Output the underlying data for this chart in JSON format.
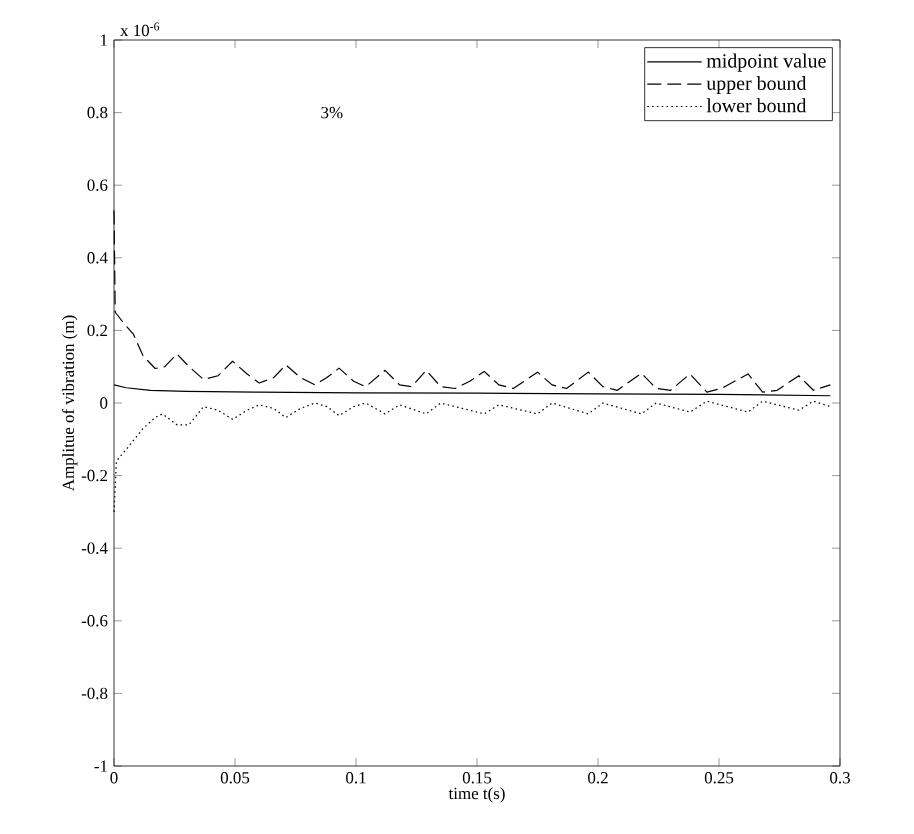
{
  "chart_data": {
    "type": "line",
    "xlabel": "time t(s)",
    "ylabel": "Amplitue of vibration (m)",
    "annotations": [
      "3%",
      "x 10$^{-6}$"
    ],
    "xlim": [
      0,
      0.3
    ],
    "xticks": [
      0,
      0.05,
      0.1,
      0.15,
      0.2,
      0.25,
      0.3
    ],
    "ylim": [
      -1,
      1
    ],
    "yticks": [
      -1,
      -0.8,
      -0.6,
      -0.4,
      -0.2,
      0,
      0.2,
      0.4,
      0.6,
      0.8,
      1
    ],
    "legend": "top right",
    "grid": false,
    "series": [
      {
        "name": "midpoint value",
        "color": "#000000",
        "line_style": "solid",
        "x": [
          0,
          0.005,
          0.015,
          0.03,
          0.06,
          0.1,
          0.15,
          0.2,
          0.25,
          0.296
        ],
        "values": [
          0.05,
          0.042,
          0.035,
          0.032,
          0.03,
          0.028,
          0.027,
          0.025,
          0.024,
          0.02
        ]
      },
      {
        "name": "upper bound",
        "color": "#000000",
        "line_style": "dashed",
        "x": [
          0,
          0.0005,
          0.004,
          0.008,
          0.012,
          0.017,
          0.021,
          0.026,
          0.031,
          0.037,
          0.043,
          0.049,
          0.055,
          0.06,
          0.066,
          0.071,
          0.077,
          0.083,
          0.088,
          0.093,
          0.099,
          0.104,
          0.112,
          0.118,
          0.123,
          0.129,
          0.135,
          0.141,
          0.147,
          0.153,
          0.159,
          0.165,
          0.175,
          0.181,
          0.187,
          0.196,
          0.202,
          0.208,
          0.218,
          0.224,
          0.23,
          0.238,
          0.245,
          0.251,
          0.262,
          0.268,
          0.274,
          0.283,
          0.289,
          0.296
        ],
        "values": [
          0.53,
          0.25,
          0.22,
          0.19,
          0.13,
          0.095,
          0.1,
          0.135,
          0.1,
          0.065,
          0.075,
          0.115,
          0.08,
          0.055,
          0.07,
          0.105,
          0.07,
          0.05,
          0.07,
          0.096,
          0.06,
          0.045,
          0.09,
          0.05,
          0.045,
          0.09,
          0.045,
          0.04,
          0.06,
          0.087,
          0.05,
          0.04,
          0.085,
          0.05,
          0.04,
          0.085,
          0.045,
          0.035,
          0.082,
          0.04,
          0.035,
          0.08,
          0.03,
          0.04,
          0.08,
          0.03,
          0.035,
          0.075,
          0.035,
          0.05
        ]
      },
      {
        "name": "lower bound",
        "color": "#000000",
        "line_style": "dotted",
        "x": [
          0,
          0.001,
          0.006,
          0.012,
          0.017,
          0.02,
          0.026,
          0.031,
          0.037,
          0.043,
          0.049,
          0.055,
          0.06,
          0.066,
          0.071,
          0.077,
          0.083,
          0.088,
          0.093,
          0.099,
          0.104,
          0.112,
          0.118,
          0.129,
          0.135,
          0.147,
          0.153,
          0.159,
          0.175,
          0.181,
          0.196,
          0.202,
          0.218,
          0.224,
          0.238,
          0.245,
          0.262,
          0.268,
          0.283,
          0.289,
          0.296
        ],
        "values": [
          -0.3,
          -0.16,
          -0.12,
          -0.07,
          -0.04,
          -0.03,
          -0.06,
          -0.06,
          -0.01,
          -0.02,
          -0.045,
          -0.02,
          -0.005,
          -0.015,
          -0.04,
          -0.015,
          0.0,
          -0.01,
          -0.035,
          -0.01,
          0.0,
          -0.03,
          -0.005,
          -0.03,
          0.0,
          -0.02,
          -0.03,
          -0.005,
          -0.03,
          0.0,
          -0.03,
          0.0,
          -0.03,
          0.0,
          -0.025,
          0.005,
          -0.025,
          0.005,
          -0.02,
          0.005,
          -0.01
        ]
      }
    ]
  }
}
